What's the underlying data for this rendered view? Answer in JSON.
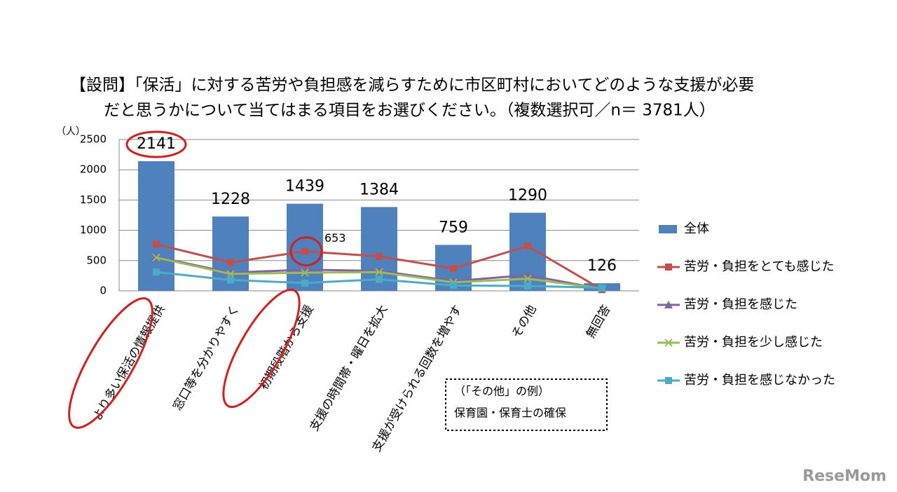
{
  "chart_data": {
    "type": "bar_line",
    "title": [
      "【設問】「保活」に対する苦労や負担感を減らすために市区町村においてどのような支援が必要",
      "だと思うかについて当てはまる項目をお選びください。（複数選択可／n＝ 3781人）"
    ],
    "y_label": "（人）",
    "categories": [
      "より多い保活の情報提供",
      "窓口等を分かりやすく",
      "初期段階から支援",
      "支援の時間帯・曜日を拡大",
      "支援が受けられる回数を増やす",
      "その他",
      "無回答"
    ],
    "series": [
      {
        "name": "全体",
        "type": "bar",
        "color": "#4f81bd",
        "values": [
          2141,
          1228,
          1439,
          1384,
          759,
          1290,
          126
        ],
        "label_indices": [
          0,
          1,
          2,
          3,
          4,
          5,
          6
        ]
      },
      {
        "name": "苦労・負担をとても感じた",
        "type": "line",
        "marker": "square",
        "color": "#c0504d",
        "values": [
          770,
          470,
          653,
          570,
          370,
          740,
          20
        ],
        "label_indices": [
          2
        ]
      },
      {
        "name": "苦労・負担を感じた",
        "type": "line",
        "marker": "triangle",
        "color": "#8064a2",
        "values": [
          560,
          300,
          350,
          330,
          160,
          260,
          30
        ]
      },
      {
        "name": "苦労・負担を少し感じた",
        "type": "line",
        "marker": "x",
        "color": "#9bbb59",
        "values": [
          550,
          280,
          300,
          310,
          140,
          200,
          40
        ]
      },
      {
        "name": "苦労・負担を感じなかった",
        "type": "line",
        "marker": "square",
        "color": "#4bacc6",
        "values": [
          310,
          180,
          130,
          190,
          90,
          80,
          50
        ]
      }
    ],
    "ylim": [
      0,
      2500
    ],
    "yticks": [
      0,
      500,
      1000,
      1500,
      2000,
      2500
    ],
    "grid": true,
    "annotation": [
      "（「その他」の例）",
      "保育園・保育士の確保"
    ],
    "watermark": "ReseMom"
  }
}
